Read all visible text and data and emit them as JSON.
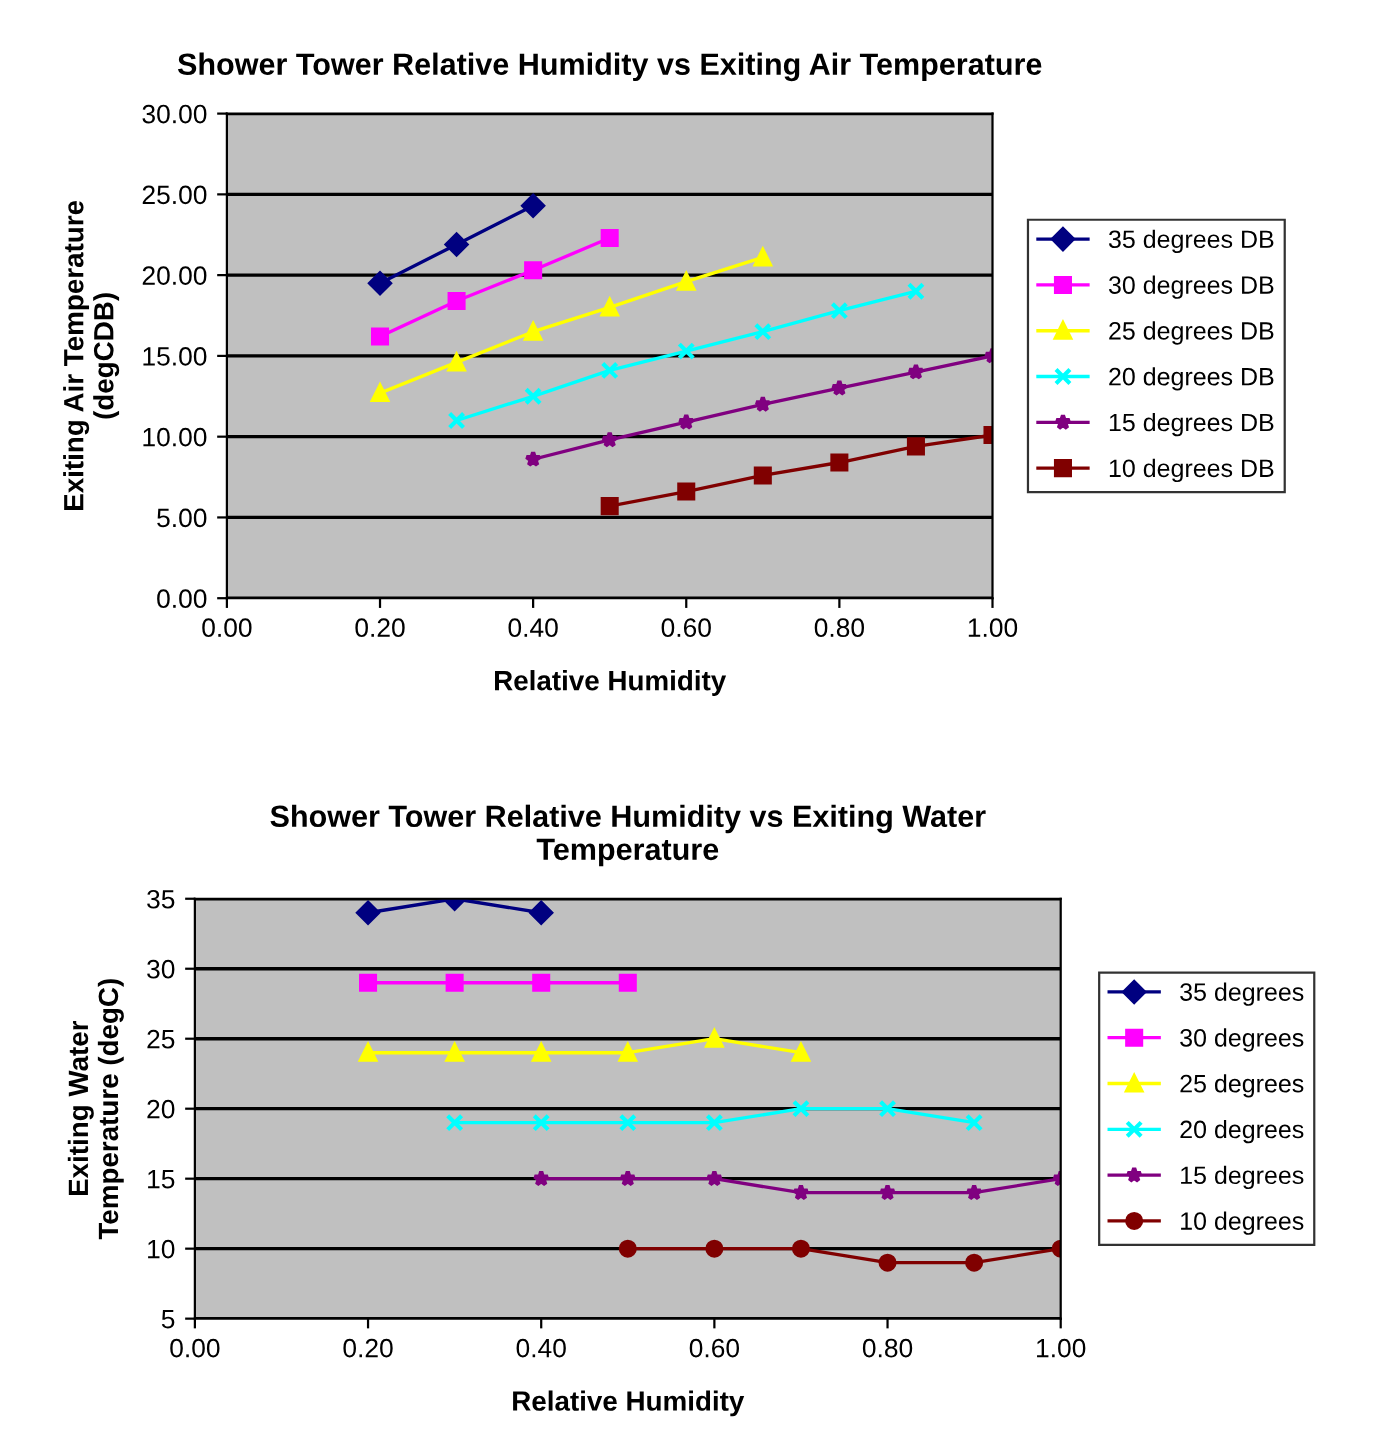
{
  "chart_data": [
    {
      "type": "line",
      "title": "Shower Tower Relative Humidity vs Exiting Air Temperature",
      "xlabel": "Relative Humidity",
      "ylabel": "Exiting Air Temperature\n(degCDB)",
      "xlim": [
        0,
        1
      ],
      "xticks": [
        {
          "value": 0,
          "label": "0.00"
        },
        {
          "value": 0.2,
          "label": "0.20"
        },
        {
          "value": 0.4,
          "label": "0.40"
        },
        {
          "value": 0.6,
          "label": "0.60"
        },
        {
          "value": 0.8,
          "label": "0.80"
        },
        {
          "value": 1,
          "label": "1.00"
        }
      ],
      "ylim": [
        0,
        30
      ],
      "yticks": [
        {
          "value": 0,
          "label": "0.00"
        },
        {
          "value": 5,
          "label": "5.00"
        },
        {
          "value": 10,
          "label": "10.00"
        },
        {
          "value": 15,
          "label": "15.00"
        },
        {
          "value": 20,
          "label": "20.00"
        },
        {
          "value": 25,
          "label": "25.00"
        },
        {
          "value": 30,
          "label": "30.00"
        }
      ],
      "grid": "y",
      "legend": "right",
      "line_style": "solid",
      "series": [
        {
          "name": "35 degrees DB",
          "color": "#000080",
          "marker": "diamond",
          "x": [
            0.2,
            0.3,
            0.4
          ],
          "values": [
            19.5,
            21.9,
            24.3
          ]
        },
        {
          "name": "30 degrees DB",
          "color": "#ff00ff",
          "marker": "square",
          "x": [
            0.2,
            0.3,
            0.4,
            0.5
          ],
          "values": [
            16.2,
            18.4,
            20.3,
            22.3
          ]
        },
        {
          "name": "25 degrees DB",
          "color": "#ffff00",
          "marker": "triangle",
          "x": [
            0.2,
            0.3,
            0.4,
            0.5,
            0.6,
            0.7
          ],
          "values": [
            12.7,
            14.6,
            16.5,
            18.0,
            19.6,
            21.1
          ]
        },
        {
          "name": "20 degrees DB",
          "color": "#00ffff",
          "marker": "cross",
          "x": [
            0.3,
            0.4,
            0.5,
            0.6,
            0.7,
            0.8,
            0.9
          ],
          "values": [
            11.0,
            12.5,
            14.1,
            15.3,
            16.5,
            17.8,
            19.0
          ]
        },
        {
          "name": "15 degrees DB",
          "color": "#800080",
          "marker": "star",
          "x": [
            0.4,
            0.5,
            0.6,
            0.7,
            0.8,
            0.9,
            1.0
          ],
          "values": [
            8.6,
            9.8,
            10.9,
            12.0,
            13.0,
            14.0,
            15.0
          ]
        },
        {
          "name": "10 degrees DB",
          "color": "#800000",
          "marker": "square",
          "x": [
            0.5,
            0.6,
            0.7,
            0.8,
            0.9,
            1.0
          ],
          "values": [
            5.7,
            6.6,
            7.6,
            8.4,
            9.4,
            10.1
          ]
        }
      ]
    },
    {
      "type": "line",
      "title": "Shower Tower Relative Humidity vs Exiting Water\nTemperature",
      "xlabel": "Relative Humidity",
      "ylabel": "Exiting Water\nTemperature (degC)",
      "xlim": [
        0,
        1
      ],
      "xticks": [
        {
          "value": 0,
          "label": "0.00"
        },
        {
          "value": 0.2,
          "label": "0.20"
        },
        {
          "value": 0.4,
          "label": "0.40"
        },
        {
          "value": 0.6,
          "label": "0.60"
        },
        {
          "value": 0.8,
          "label": "0.80"
        },
        {
          "value": 1,
          "label": "1.00"
        }
      ],
      "ylim": [
        5,
        35
      ],
      "yticks": [
        5,
        10,
        15,
        20,
        25,
        30,
        35
      ],
      "grid": "y",
      "legend": "right",
      "line_style": "solid",
      "series": [
        {
          "name": "35 degrees",
          "color": "#000080",
          "marker": "diamond",
          "x": [
            0.2,
            0.3,
            0.4
          ],
          "values": [
            34,
            35,
            34
          ]
        },
        {
          "name": "30 degrees",
          "color": "#ff00ff",
          "marker": "square",
          "x": [
            0.2,
            0.3,
            0.4,
            0.5
          ],
          "values": [
            29,
            29,
            29,
            29
          ]
        },
        {
          "name": "25 degrees",
          "color": "#ffff00",
          "marker": "triangle",
          "x": [
            0.2,
            0.3,
            0.4,
            0.5,
            0.6,
            0.7
          ],
          "values": [
            24,
            24,
            24,
            24,
            25,
            24
          ]
        },
        {
          "name": "20 degrees",
          "color": "#00ffff",
          "marker": "cross",
          "x": [
            0.3,
            0.4,
            0.5,
            0.6,
            0.7,
            0.8,
            0.9
          ],
          "values": [
            19,
            19,
            19,
            19,
            20,
            20,
            19
          ]
        },
        {
          "name": "15 degrees",
          "color": "#800080",
          "marker": "star",
          "x": [
            0.4,
            0.5,
            0.6,
            0.7,
            0.8,
            0.9,
            1.0
          ],
          "values": [
            15,
            15,
            15,
            14,
            14,
            14,
            15
          ]
        },
        {
          "name": "10 degrees",
          "color": "#800000",
          "marker": "circle",
          "x": [
            0.5,
            0.6,
            0.7,
            0.8,
            0.9,
            1.0
          ],
          "values": [
            10,
            10,
            10,
            9,
            9,
            10
          ]
        }
      ]
    }
  ]
}
